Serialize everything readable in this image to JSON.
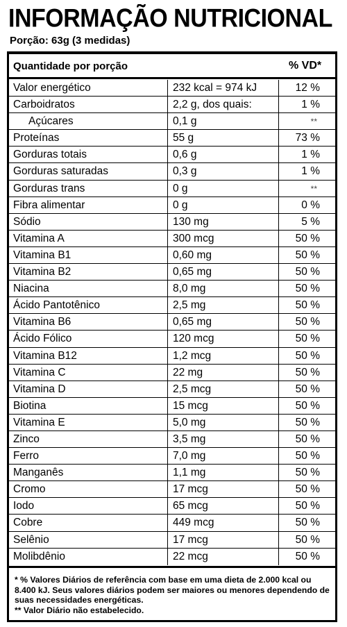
{
  "title": "INFORMAÇÃO NUTRICIONAL",
  "portion": "Porção: 63g (3 medidas)",
  "header": {
    "quantity_label": "Quantidade por porção",
    "vd_label": "% VD*"
  },
  "rows": [
    {
      "name": "Valor energético",
      "amount": "232 kcal = 974 kJ",
      "vd": "12 %"
    },
    {
      "name": "Carboidratos",
      "amount": "2,2 g, dos quais:",
      "vd": "1 %"
    },
    {
      "name": "Açúcares",
      "amount": "0,1 g",
      "vd": "**",
      "sub": true
    },
    {
      "name": "Proteínas",
      "amount": "55 g",
      "vd": "73 %"
    },
    {
      "name": "Gorduras totais",
      "amount": "0,6 g",
      "vd": "1 %"
    },
    {
      "name": "Gorduras saturadas",
      "amount": "0,3 g",
      "vd": "1 %"
    },
    {
      "name": "Gorduras trans",
      "amount": "0 g",
      "vd": "**"
    },
    {
      "name": "Fibra alimentar",
      "amount": "0 g",
      "vd": "0 %"
    },
    {
      "name": "Sódio",
      "amount": "130 mg",
      "vd": "5 %"
    },
    {
      "name": "Vitamina A",
      "amount": "300 mcg",
      "vd": "50 %"
    },
    {
      "name": "Vitamina B1",
      "amount": "0,60 mg",
      "vd": "50 %"
    },
    {
      "name": "Vitamina B2",
      "amount": "0,65 mg",
      "vd": "50 %"
    },
    {
      "name": "Niacina",
      "amount": "8,0 mg",
      "vd": "50 %"
    },
    {
      "name": "Ácido Pantotênico",
      "amount": "2,5 mg",
      "vd": "50 %"
    },
    {
      "name": "Vitamina B6",
      "amount": "0,65 mg",
      "vd": "50 %"
    },
    {
      "name": "Ácido Fólico",
      "amount": "120 mcg",
      "vd": "50 %"
    },
    {
      "name": "Vitamina B12",
      "amount": "1,2 mcg",
      "vd": "50 %"
    },
    {
      "name": "Vitamina C",
      "amount": "22 mg",
      "vd": "50 %"
    },
    {
      "name": "Vitamina D",
      "amount": "2,5 mcg",
      "vd": "50 %"
    },
    {
      "name": "Biotina",
      "amount": "15 mcg",
      "vd": "50 %"
    },
    {
      "name": "Vitamina E",
      "amount": "5,0 mg",
      "vd": "50 %"
    },
    {
      "name": "Zinco",
      "amount": "3,5 mg",
      "vd": "50 %"
    },
    {
      "name": "Ferro",
      "amount": "7,0 mg",
      "vd": "50 %"
    },
    {
      "name": "Manganês",
      "amount": "1,1 mg",
      "vd": "50 %"
    },
    {
      "name": "Cromo",
      "amount": "17 mcg",
      "vd": "50 %"
    },
    {
      "name": "Iodo",
      "amount": "65 mcg",
      "vd": "50 %"
    },
    {
      "name": "Cobre",
      "amount": "449 mcg",
      "vd": "50 %"
    },
    {
      "name": "Selênio",
      "amount": "17 mcg",
      "vd": "50 %"
    },
    {
      "name": "Molibdênio",
      "amount": "22 mcg",
      "vd": "50 %"
    }
  ],
  "footer": {
    "note1": "* % Valores Diários de referência com base em uma dieta de 2.000 kcal ou 8.400 kJ. Seus valores diários podem ser maiores ou menores dependendo de suas necessidades energéticas.",
    "note2": "** Valor Diário não estabelecido."
  }
}
